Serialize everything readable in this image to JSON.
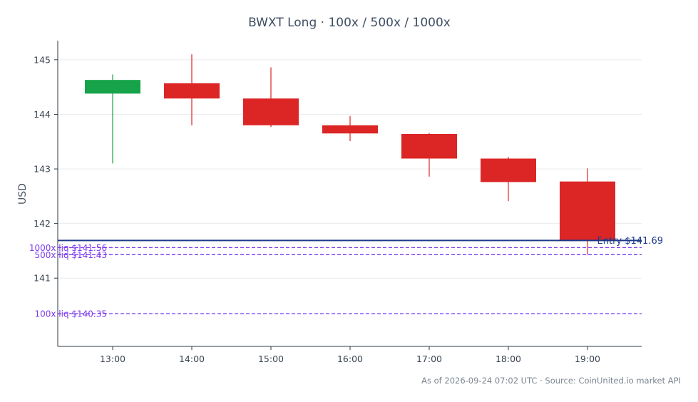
{
  "chart_data": {
    "type": "candlestick",
    "title": "BWXT Long · 100x / 500x / 1000x",
    "ylabel": "USD",
    "xlabel": "",
    "ylim": [
      139.75,
      145.35
    ],
    "yticks": [
      141,
      142,
      143,
      144,
      145
    ],
    "ytick_labels": [
      "141",
      "142",
      "143",
      "144",
      "145"
    ],
    "categories": [
      "13:00",
      "14:00",
      "15:00",
      "16:00",
      "17:00",
      "18:00",
      "19:00"
    ],
    "candles": [
      {
        "time": "13:00",
        "open": 144.38,
        "high": 144.73,
        "low": 143.1,
        "close": 144.63
      },
      {
        "time": "14:00",
        "open": 144.57,
        "high": 145.1,
        "low": 143.8,
        "close": 144.29
      },
      {
        "time": "15:00",
        "open": 144.29,
        "high": 144.86,
        "low": 143.77,
        "close": 143.8
      },
      {
        "time": "16:00",
        "open": 143.8,
        "high": 143.97,
        "low": 143.51,
        "close": 143.65
      },
      {
        "time": "17:00",
        "open": 143.64,
        "high": 143.66,
        "low": 142.86,
        "close": 143.19
      },
      {
        "time": "18:00",
        "open": 143.19,
        "high": 143.22,
        "low": 142.41,
        "close": 142.76
      },
      {
        "time": "19:00",
        "open": 142.77,
        "high": 143.01,
        "low": 141.43,
        "close": 141.68
      }
    ],
    "up_color": "#16a34a",
    "down_color": "#dc2626",
    "entry": {
      "label": "Entry $141.69",
      "price": 141.69,
      "color": "#1e3a8a"
    },
    "liquidations": [
      {
        "label": "1000x liq $141.56",
        "price": 141.56
      },
      {
        "label": "500x liq $141.43",
        "price": 141.43
      },
      {
        "label": "100x liq $140.35",
        "price": 140.35
      }
    ],
    "liq_color": "#7c3aed",
    "grid": true
  },
  "footer": "As of 2026-09-24 07:02 UTC · Source: CoinUnited.io market API"
}
